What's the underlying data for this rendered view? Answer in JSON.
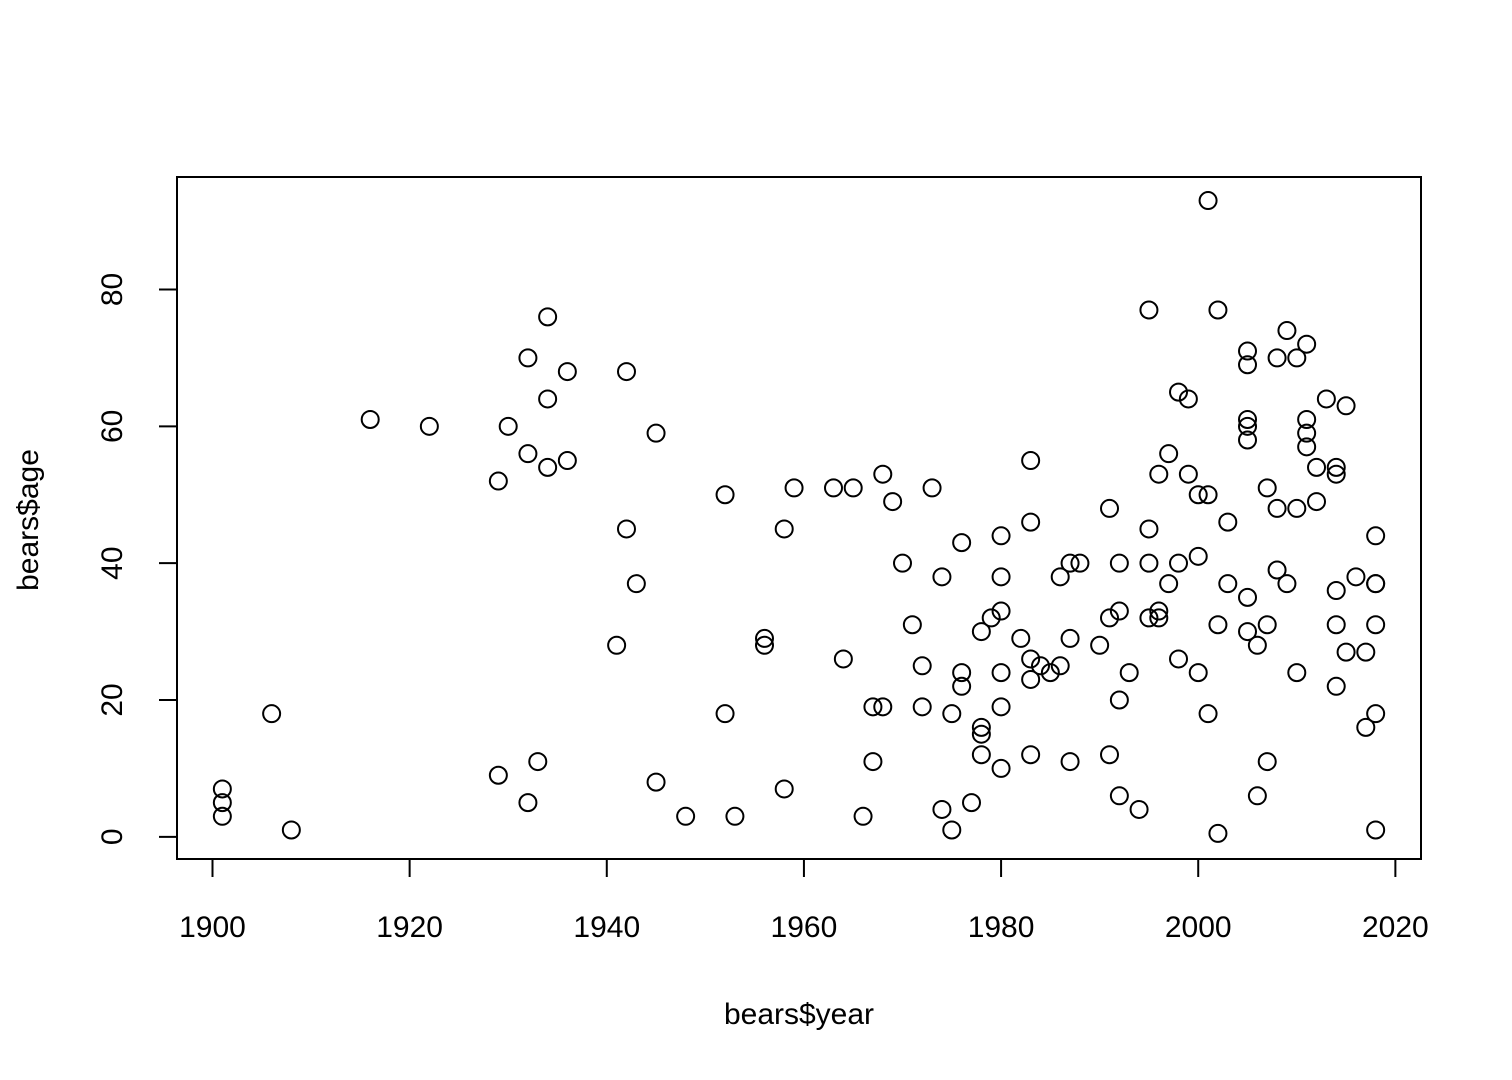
{
  "chart_data": {
    "type": "scatter",
    "title": "",
    "xlabel": "bears$year",
    "ylabel": "bears$age",
    "xlim": [
      1896.4,
      2022.6
    ],
    "ylim": [
      -3.24,
      96.44
    ],
    "x_ticks": [
      1900,
      1920,
      1940,
      1960,
      1980,
      2000,
      2020
    ],
    "x_tick_labels": [
      "1900",
      "1920",
      "1940",
      "1960",
      "1980",
      "2000",
      "2020"
    ],
    "y_ticks": [
      0,
      20,
      40,
      60,
      80
    ],
    "y_tick_labels": [
      "0",
      "20",
      "40",
      "60",
      "80"
    ],
    "grid": false,
    "legend": "none",
    "marker": "open-circle",
    "color": "#000000",
    "points": [
      [
        1901,
        7
      ],
      [
        1901,
        5
      ],
      [
        1901,
        3
      ],
      [
        1906,
        18
      ],
      [
        1908,
        1
      ],
      [
        1916,
        61
      ],
      [
        1922,
        60
      ],
      [
        1929,
        52
      ],
      [
        1929,
        9
      ],
      [
        1930,
        60
      ],
      [
        1932,
        70
      ],
      [
        1932,
        56
      ],
      [
        1932,
        5
      ],
      [
        1933,
        11
      ],
      [
        1934,
        76
      ],
      [
        1934,
        64
      ],
      [
        1934,
        54
      ],
      [
        1936,
        68
      ],
      [
        1936,
        55
      ],
      [
        1941,
        28
      ],
      [
        1942,
        68
      ],
      [
        1942,
        45
      ],
      [
        1943,
        37
      ],
      [
        1945,
        59
      ],
      [
        1945,
        8
      ],
      [
        1948,
        3
      ],
      [
        1952,
        50
      ],
      [
        1952,
        18
      ],
      [
        1953,
        3
      ],
      [
        1956,
        29
      ],
      [
        1956,
        28
      ],
      [
        1958,
        45
      ],
      [
        1958,
        7
      ],
      [
        1959,
        51
      ],
      [
        1963,
        51
      ],
      [
        1964,
        26
      ],
      [
        1965,
        51
      ],
      [
        1966,
        3
      ],
      [
        1967,
        19
      ],
      [
        1967,
        11
      ],
      [
        1968,
        53
      ],
      [
        1968,
        19
      ],
      [
        1969,
        49
      ],
      [
        1970,
        40
      ],
      [
        1971,
        31
      ],
      [
        1972,
        25
      ],
      [
        1972,
        19
      ],
      [
        1973,
        51
      ],
      [
        1974,
        38
      ],
      [
        1974,
        4
      ],
      [
        1975,
        18
      ],
      [
        1975,
        1
      ],
      [
        1976,
        43
      ],
      [
        1976,
        24
      ],
      [
        1976,
        22
      ],
      [
        1977,
        5
      ],
      [
        1978,
        30
      ],
      [
        1978,
        16
      ],
      [
        1978,
        15
      ],
      [
        1978,
        12
      ],
      [
        1979,
        32
      ],
      [
        1980,
        44
      ],
      [
        1980,
        38
      ],
      [
        1980,
        33
      ],
      [
        1980,
        24
      ],
      [
        1980,
        19
      ],
      [
        1980,
        10
      ],
      [
        1982,
        29
      ],
      [
        1983,
        55
      ],
      [
        1983,
        46
      ],
      [
        1983,
        26
      ],
      [
        1983,
        23
      ],
      [
        1983,
        12
      ],
      [
        1984,
        25
      ],
      [
        1985,
        24
      ],
      [
        1986,
        38
      ],
      [
        1986,
        25
      ],
      [
        1987,
        40
      ],
      [
        1987,
        29
      ],
      [
        1987,
        11
      ],
      [
        1988,
        40
      ],
      [
        1990,
        28
      ],
      [
        1991,
        48
      ],
      [
        1991,
        32
      ],
      [
        1991,
        12
      ],
      [
        1992,
        40
      ],
      [
        1992,
        33
      ],
      [
        1992,
        20
      ],
      [
        1992,
        6
      ],
      [
        1993,
        24
      ],
      [
        1994,
        4
      ],
      [
        1995,
        77
      ],
      [
        1995,
        45
      ],
      [
        1995,
        40
      ],
      [
        1995,
        32
      ],
      [
        1996,
        53
      ],
      [
        1996,
        33
      ],
      [
        1996,
        32
      ],
      [
        1997,
        56
      ],
      [
        1997,
        37
      ],
      [
        1998,
        65
      ],
      [
        1998,
        40
      ],
      [
        1998,
        26
      ],
      [
        1999,
        64
      ],
      [
        1999,
        53
      ],
      [
        2000,
        50
      ],
      [
        2000,
        41
      ],
      [
        2000,
        24
      ],
      [
        2001,
        93
      ],
      [
        2001,
        50
      ],
      [
        2001,
        18
      ],
      [
        2002,
        77
      ],
      [
        2002,
        31
      ],
      [
        2002,
        0.5
      ],
      [
        2003,
        46
      ],
      [
        2003,
        37
      ],
      [
        2005,
        71
      ],
      [
        2005,
        69
      ],
      [
        2005,
        61
      ],
      [
        2005,
        60
      ],
      [
        2005,
        58
      ],
      [
        2005,
        35
      ],
      [
        2005,
        30
      ],
      [
        2006,
        28
      ],
      [
        2006,
        6
      ],
      [
        2007,
        51
      ],
      [
        2007,
        31
      ],
      [
        2007,
        11
      ],
      [
        2008,
        70
      ],
      [
        2008,
        48
      ],
      [
        2008,
        39
      ],
      [
        2009,
        74
      ],
      [
        2009,
        37
      ],
      [
        2010,
        70
      ],
      [
        2010,
        48
      ],
      [
        2010,
        24
      ],
      [
        2011,
        72
      ],
      [
        2011,
        61
      ],
      [
        2011,
        59
      ],
      [
        2011,
        57
      ],
      [
        2012,
        54
      ],
      [
        2012,
        49
      ],
      [
        2013,
        64
      ],
      [
        2014,
        54
      ],
      [
        2014,
        53
      ],
      [
        2014,
        36
      ],
      [
        2014,
        31
      ],
      [
        2014,
        22
      ],
      [
        2015,
        63
      ],
      [
        2015,
        27
      ],
      [
        2016,
        38
      ],
      [
        2017,
        27
      ],
      [
        2017,
        16
      ],
      [
        2018,
        44
      ],
      [
        2018,
        37
      ],
      [
        2018,
        37
      ],
      [
        2018,
        31
      ],
      [
        2018,
        18
      ],
      [
        2018,
        1
      ]
    ]
  }
}
